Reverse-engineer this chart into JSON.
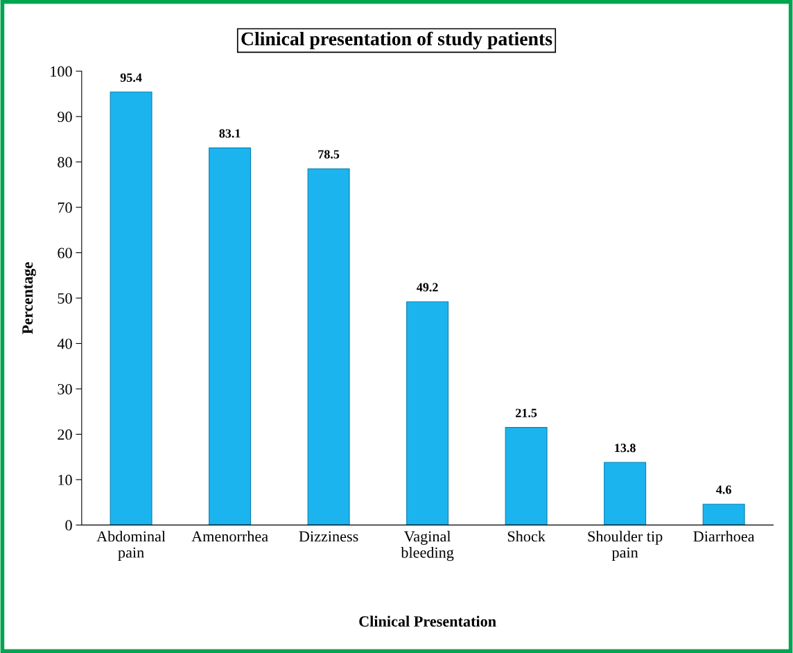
{
  "chart_data": {
    "type": "bar",
    "title": "Clinical presentation of study patients",
    "xlabel": "Clinical Presentation",
    "ylabel": "Percentage",
    "categories": [
      "Abdominal\npain",
      "Amenorrhea",
      "Dizziness",
      "Vaginal\nbleeding",
      "Shock",
      "Shoulder tip\npain",
      "Diarrhoea"
    ],
    "values": [
      95.4,
      83.1,
      78.5,
      49.2,
      21.5,
      13.8,
      4.6
    ],
    "color": "#1cb4ee",
    "ylim": [
      0,
      100
    ],
    "yticks": [
      0,
      10,
      20,
      30,
      40,
      50,
      60,
      70,
      80,
      90,
      100
    ],
    "grid": false,
    "legend": false,
    "data_labels": true
  }
}
